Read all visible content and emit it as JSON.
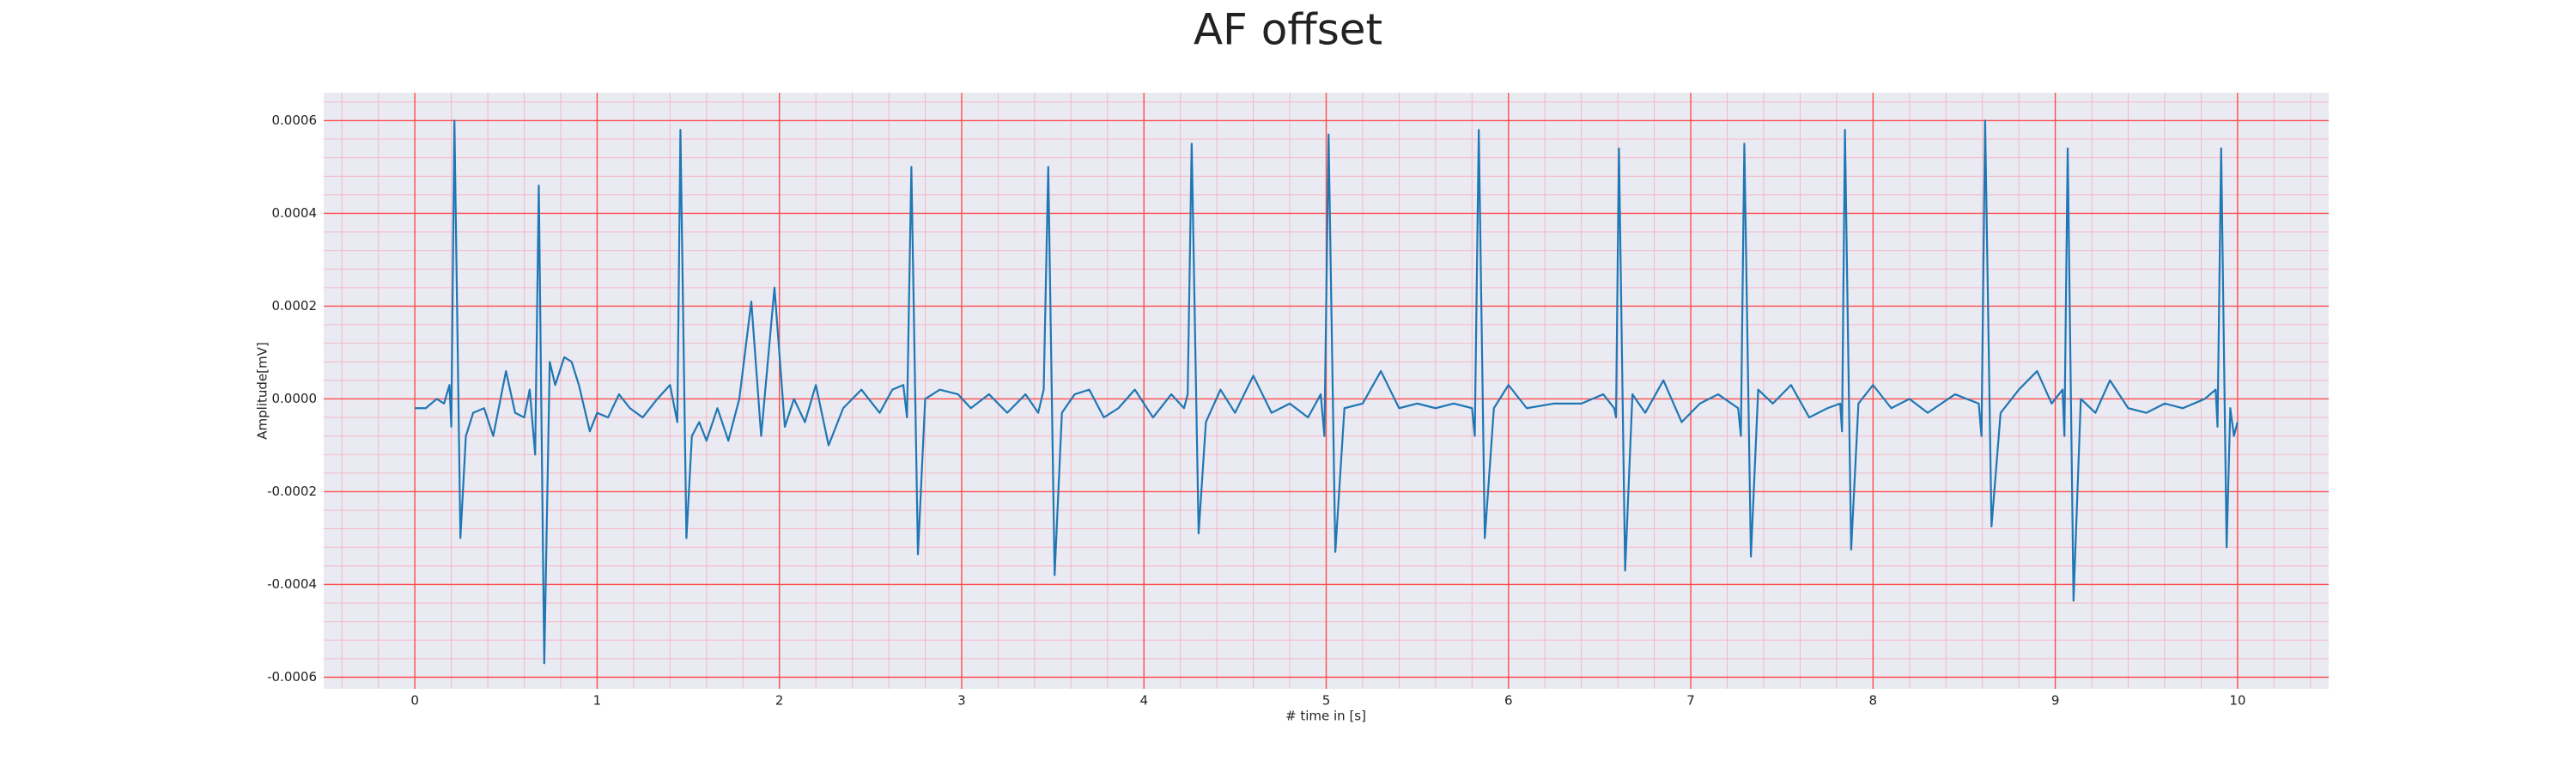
{
  "chart_data": {
    "type": "line",
    "title": "AF offset",
    "xlabel": "# time in [s]",
    "ylabel": "Amplitude[mV]",
    "x": [
      0,
      0.06,
      0.12,
      0.16,
      0.19,
      0.2,
      0.217,
      0.25,
      0.28,
      0.32,
      0.38,
      0.43,
      0.5,
      0.55,
      0.6,
      0.63,
      0.66,
      0.68,
      0.71,
      0.74,
      0.77,
      0.82,
      0.86,
      0.9,
      0.96,
      1.0,
      1.06,
      1.12,
      1.18,
      1.25,
      1.33,
      1.4,
      1.44,
      1.457,
      1.49,
      1.52,
      1.56,
      1.6,
      1.66,
      1.72,
      1.78,
      1.846,
      1.9,
      1.973,
      2.03,
      2.08,
      2.14,
      2.2,
      2.27,
      2.35,
      2.45,
      2.55,
      2.62,
      2.68,
      2.7,
      2.724,
      2.76,
      2.8,
      2.88,
      2.98,
      3.05,
      3.15,
      3.25,
      3.35,
      3.42,
      3.45,
      3.475,
      3.51,
      3.55,
      3.62,
      3.7,
      3.78,
      3.86,
      3.95,
      4.05,
      4.15,
      4.22,
      4.24,
      4.262,
      4.3,
      4.34,
      4.42,
      4.5,
      4.6,
      4.7,
      4.8,
      4.9,
      4.97,
      4.99,
      5.013,
      5.05,
      5.1,
      5.2,
      5.3,
      5.4,
      5.5,
      5.6,
      5.7,
      5.8,
      5.815,
      5.837,
      5.87,
      5.92,
      6.0,
      6.1,
      6.25,
      6.4,
      6.52,
      6.58,
      6.59,
      6.606,
      6.64,
      6.68,
      6.75,
      6.85,
      6.95,
      7.05,
      7.15,
      7.26,
      7.275,
      7.294,
      7.33,
      7.37,
      7.45,
      7.55,
      7.65,
      7.75,
      7.82,
      7.83,
      7.846,
      7.88,
      7.92,
      8.0,
      8.1,
      8.2,
      8.3,
      8.45,
      8.58,
      8.595,
      8.615,
      8.65,
      8.7,
      8.8,
      8.9,
      8.98,
      9.04,
      9.05,
      9.068,
      9.1,
      9.14,
      9.22,
      9.3,
      9.4,
      9.5,
      9.6,
      9.7,
      9.82,
      9.88,
      9.89,
      9.91,
      9.94,
      9.96,
      9.98,
      10.0
    ],
    "series": [
      {
        "color": "#1f77b4",
        "values": [
          -2e-05,
          -2e-05,
          0.0,
          -1e-05,
          3e-05,
          -6e-05,
          0.0006,
          -0.0003,
          -8e-05,
          -3e-05,
          -2e-05,
          -8e-05,
          6e-05,
          -3e-05,
          -4e-05,
          2e-05,
          -0.00012,
          0.00046,
          -0.00057,
          8e-05,
          3e-05,
          9e-05,
          8e-05,
          3e-05,
          -7e-05,
          -3e-05,
          -4e-05,
          1e-05,
          -2e-05,
          -4e-05,
          0.0,
          3e-05,
          -5e-05,
          0.00058,
          -0.0003,
          -8e-05,
          -5e-05,
          -9e-05,
          -2e-05,
          -9e-05,
          0.0,
          0.00021,
          -8e-05,
          0.00024,
          -6e-05,
          0.0,
          -5e-05,
          3e-05,
          -0.0001,
          -2e-05,
          2e-05,
          -3e-05,
          2e-05,
          3e-05,
          -4e-05,
          0.0005,
          -0.000335,
          0.0,
          2e-05,
          1e-05,
          -2e-05,
          1e-05,
          -3e-05,
          1e-05,
          -3e-05,
          2e-05,
          0.0005,
          -0.00038,
          -3e-05,
          1e-05,
          2e-05,
          -4e-05,
          -2e-05,
          2e-05,
          -4e-05,
          1e-05,
          -2e-05,
          1e-05,
          0.00055,
          -0.00029,
          -5e-05,
          2e-05,
          -3e-05,
          5e-05,
          -3e-05,
          -1e-05,
          -4e-05,
          1e-05,
          -8e-05,
          0.00057,
          -0.00033,
          -2e-05,
          -1e-05,
          6e-05,
          -2e-05,
          -1e-05,
          -2e-05,
          -1e-05,
          -2e-05,
          -8e-05,
          0.00058,
          -0.0003,
          -2e-05,
          3e-05,
          -2e-05,
          -1e-05,
          -1e-05,
          1e-05,
          -2e-05,
          -4e-05,
          0.00054,
          -0.00037,
          1e-05,
          -3e-05,
          4e-05,
          -5e-05,
          -1e-05,
          1e-05,
          -2e-05,
          -8e-05,
          0.00055,
          -0.00034,
          2e-05,
          -1e-05,
          3e-05,
          -4e-05,
          -2e-05,
          -1e-05,
          -7e-05,
          0.00058,
          -0.000325,
          -1e-05,
          3e-05,
          -2e-05,
          0.0,
          -3e-05,
          1e-05,
          -1e-05,
          -8e-05,
          0.0006,
          -0.000275,
          -3e-05,
          2e-05,
          6e-05,
          -1e-05,
          2e-05,
          -8e-05,
          0.00054,
          -0.000435,
          0.0,
          -3e-05,
          4e-05,
          -2e-05,
          -3e-05,
          -1e-05,
          -2e-05,
          0.0,
          2e-05,
          -6e-05,
          0.00054,
          -0.00032,
          -2e-05,
          -8e-05,
          -5e-05
        ]
      }
    ],
    "xlim": [
      -0.5,
      10.5
    ],
    "ylim": [
      -0.000625,
      0.00066
    ],
    "xticks": [
      0,
      1,
      2,
      3,
      4,
      5,
      6,
      7,
      8,
      9,
      10
    ],
    "yticks": [
      {
        "value": -0.0006,
        "label": "-0.0006"
      },
      {
        "value": -0.0004,
        "label": "-0.0004"
      },
      {
        "value": -0.0002,
        "label": "-0.0002"
      },
      {
        "value": 0,
        "label": "0.0000"
      },
      {
        "value": 0.0002,
        "label": "0.0002"
      },
      {
        "value": 0.0004,
        "label": "0.0004"
      },
      {
        "value": 0.0006,
        "label": "0.0006"
      }
    ],
    "grid": true,
    "grid_color": "#ff4d4d",
    "minor_grid": true,
    "minor_grid_color": "#f5b8c4",
    "minor_divisions": 5,
    "background": "#eaeaf2"
  }
}
